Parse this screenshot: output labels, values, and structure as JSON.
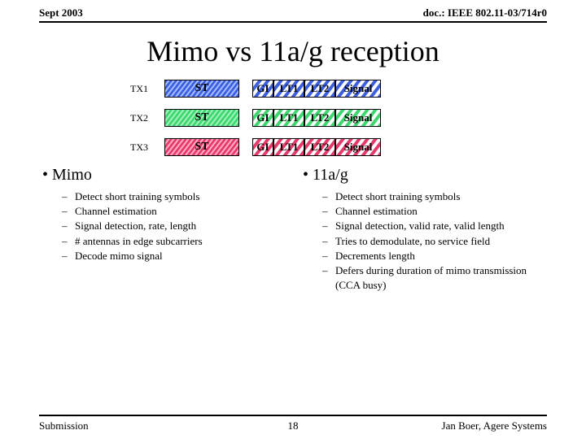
{
  "header": {
    "left": "Sept 2003",
    "right": "doc.: IEEE 802.11-03/714r0"
  },
  "title": "Mimo vs 11a/g reception",
  "rows": [
    {
      "label": "TX1",
      "st_bg": "#3b5fe0",
      "st_stripe": "#a8c0ff",
      "cells_bg": "#ffffff",
      "cells_stripe": "#3b5fe0"
    },
    {
      "label": "TX2",
      "st_bg": "#3cd86e",
      "st_stripe": "#a6f2c0",
      "cells_bg": "#ffffff",
      "cells_stripe": "#3cd86e"
    },
    {
      "label": "TX3",
      "st_bg": "#e83a6a",
      "st_stripe": "#ffb0c8",
      "cells_bg": "#ffffff",
      "cells_stripe": "#e83a6a"
    }
  ],
  "cell_labels": {
    "st": "ST",
    "gi": "GI",
    "lt1": "LT1",
    "lt2": "LT2",
    "sig": "Signal"
  },
  "left": {
    "title": "Mimo",
    "items": [
      "Detect short training symbols",
      "Channel estimation",
      "Signal detection, rate, length",
      "# antennas in edge subcarriers",
      "Decode mimo signal"
    ]
  },
  "right": {
    "title": "11a/g",
    "items": [
      "Detect short training symbols",
      "Channel estimation",
      "Signal detection, valid rate, valid length",
      "Tries to demodulate, no service field",
      "Decrements length",
      "Defers during duration of mimo transmission (CCA busy)"
    ]
  },
  "footer": {
    "left": "Submission",
    "page": "18",
    "right": "Jan Boer, Agere Systems"
  }
}
